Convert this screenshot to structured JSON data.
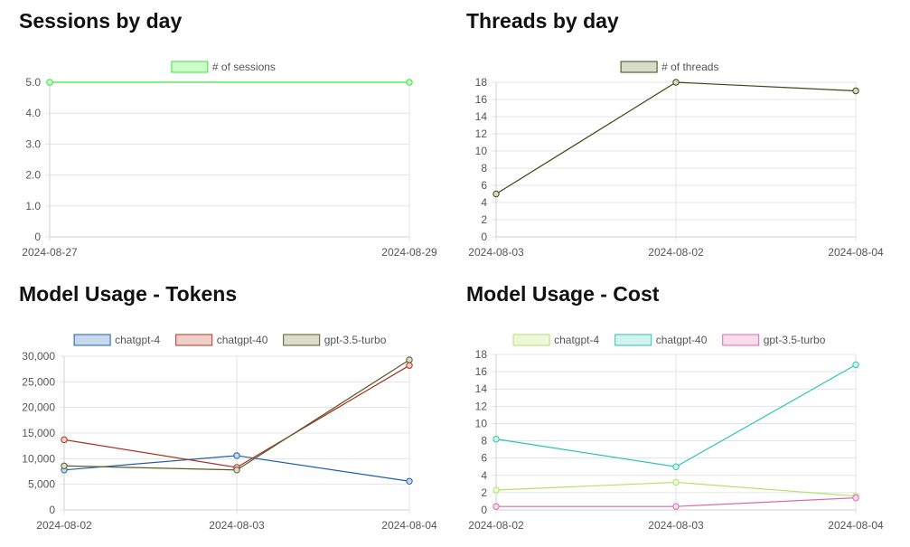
{
  "chart_data": [
    {
      "type": "line",
      "title": "Sessions by day",
      "categories": [
        "2024-08-27",
        "2024-08-29"
      ],
      "series": [
        {
          "name": "# of sessions",
          "values": [
            5,
            5
          ],
          "color": "#39e639",
          "fill": "#ccffcc"
        }
      ],
      "ylim": [
        0,
        5
      ],
      "yticks": [
        "0",
        "1.0",
        "2.0",
        "3.0",
        "4.0",
        "5.0"
      ],
      "ytick_values": [
        0,
        1,
        2,
        3,
        4,
        5
      ],
      "grid": true,
      "legend": "top-center"
    },
    {
      "type": "line",
      "title": "Threads by day",
      "categories": [
        "2024-08-03",
        "2024-08-02",
        "2024-08-04"
      ],
      "series": [
        {
          "name": "# of threads",
          "values": [
            5,
            18,
            17
          ],
          "color": "#3d4a12",
          "fill": "#d6dcc8"
        }
      ],
      "ylim": [
        0,
        18
      ],
      "yticks": [
        "0",
        "2",
        "4",
        "6",
        "8",
        "10",
        "12",
        "14",
        "16",
        "18"
      ],
      "ytick_values": [
        0,
        2,
        4,
        6,
        8,
        10,
        12,
        14,
        16,
        18
      ],
      "grid": true,
      "legend": "top-center"
    },
    {
      "type": "line",
      "title": "Model Usage - Tokens",
      "categories": [
        "2024-08-02",
        "2024-08-03",
        "2024-08-04"
      ],
      "series": [
        {
          "name": "chatgpt-4",
          "values": [
            7800,
            10600,
            5600
          ],
          "color": "#1f5fa8",
          "fill": "#c6d8ec"
        },
        {
          "name": "chatgpt-40",
          "values": [
            13700,
            8300,
            28200
          ],
          "color": "#a83222",
          "fill": "#f0cfc9"
        },
        {
          "name": "gpt-3.5-turbo",
          "values": [
            8600,
            7800,
            29300
          ],
          "color": "#5a5a2a",
          "fill": "#dcdccb"
        }
      ],
      "ylim": [
        0,
        30000
      ],
      "yticks": [
        "0",
        "5,000",
        "10,000",
        "15,000",
        "20,000",
        "25,000",
        "30,000"
      ],
      "ytick_values": [
        0,
        5000,
        10000,
        15000,
        20000,
        25000,
        30000
      ],
      "grid": true,
      "legend": "top-center"
    },
    {
      "type": "line",
      "title": "Model Usage - Cost",
      "categories": [
        "2024-08-02",
        "2024-08-03",
        "2024-08-04"
      ],
      "series": [
        {
          "name": "chatgpt-4",
          "values": [
            2.3,
            3.2,
            1.6
          ],
          "color": "#b5e06a",
          "fill": "#eef8d8"
        },
        {
          "name": "chatgpt-40",
          "values": [
            8.2,
            5.0,
            16.8
          ],
          "color": "#2ec4b3",
          "fill": "#d3f3ef"
        },
        {
          "name": "gpt-3.5-turbo",
          "values": [
            0.4,
            0.4,
            1.4
          ],
          "color": "#d96ca8",
          "fill": "#fadbea"
        }
      ],
      "ylim": [
        0,
        18
      ],
      "yticks": [
        "0",
        "2",
        "4",
        "6",
        "8",
        "10",
        "12",
        "14",
        "16",
        "18"
      ],
      "ytick_values": [
        0,
        2,
        4,
        6,
        8,
        10,
        12,
        14,
        16,
        18
      ],
      "grid": true,
      "legend": "top-center"
    }
  ]
}
